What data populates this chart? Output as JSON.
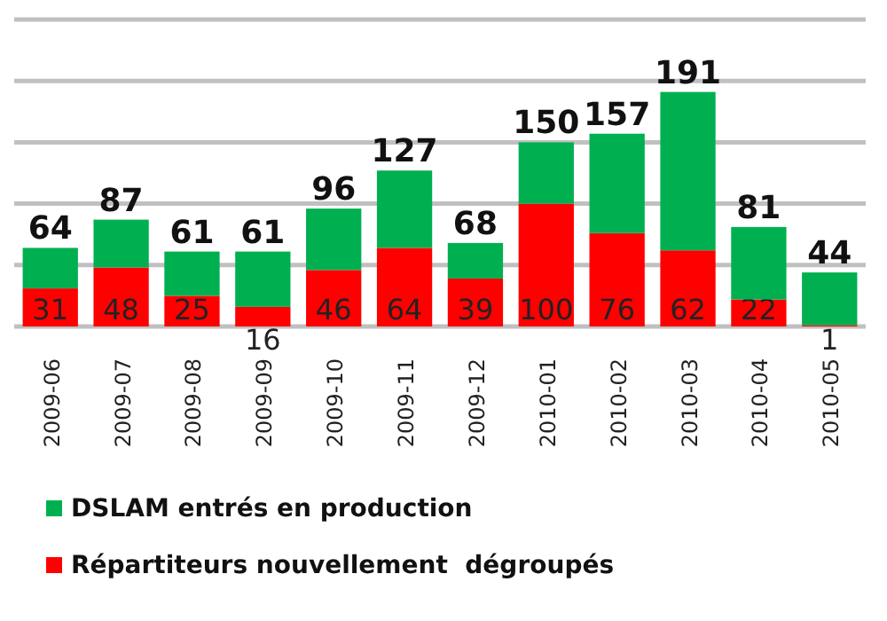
{
  "chart_data": {
    "type": "bar",
    "stacked": true,
    "categories": [
      "2009-06",
      "2009-07",
      "2009-08",
      "2009-09",
      "2009-10",
      "2009-11",
      "2009-12",
      "2010-01",
      "2010-02",
      "2010-03",
      "2010-04",
      "2010-05"
    ],
    "series": [
      {
        "name": "Répartiteurs nouvellement  dégroupés",
        "color": "#ff0000",
        "values": [
          31,
          48,
          25,
          16,
          46,
          64,
          39,
          100,
          76,
          62,
          22,
          1
        ],
        "value_labels": [
          "31",
          "48",
          "25",
          "16",
          "46",
          "64",
          "39",
          "100",
          "76",
          "62",
          "22",
          "1"
        ]
      },
      {
        "name": "DSLAM entrés en production",
        "color": "#00b050",
        "values": [
          33,
          39,
          36,
          45,
          50,
          63,
          29,
          50,
          81,
          129,
          59,
          43
        ]
      }
    ],
    "totals": [
      "64",
      "87",
      "61",
      "61",
      "96",
      "127",
      "68",
      "150",
      "157",
      "191",
      "81",
      "44"
    ],
    "ylim": [
      0,
      250
    ],
    "yticks": [
      {
        "value": 0,
        "label": null
      },
      {
        "value": 50,
        "label": null
      },
      {
        "value": 100,
        "label": null
      },
      {
        "value": 150,
        "label": null
      },
      {
        "value": 200,
        "label": null
      },
      {
        "value": 250,
        "label": null
      }
    ],
    "tick_labels": "x",
    "grid": "y",
    "legend": "bottom"
  }
}
